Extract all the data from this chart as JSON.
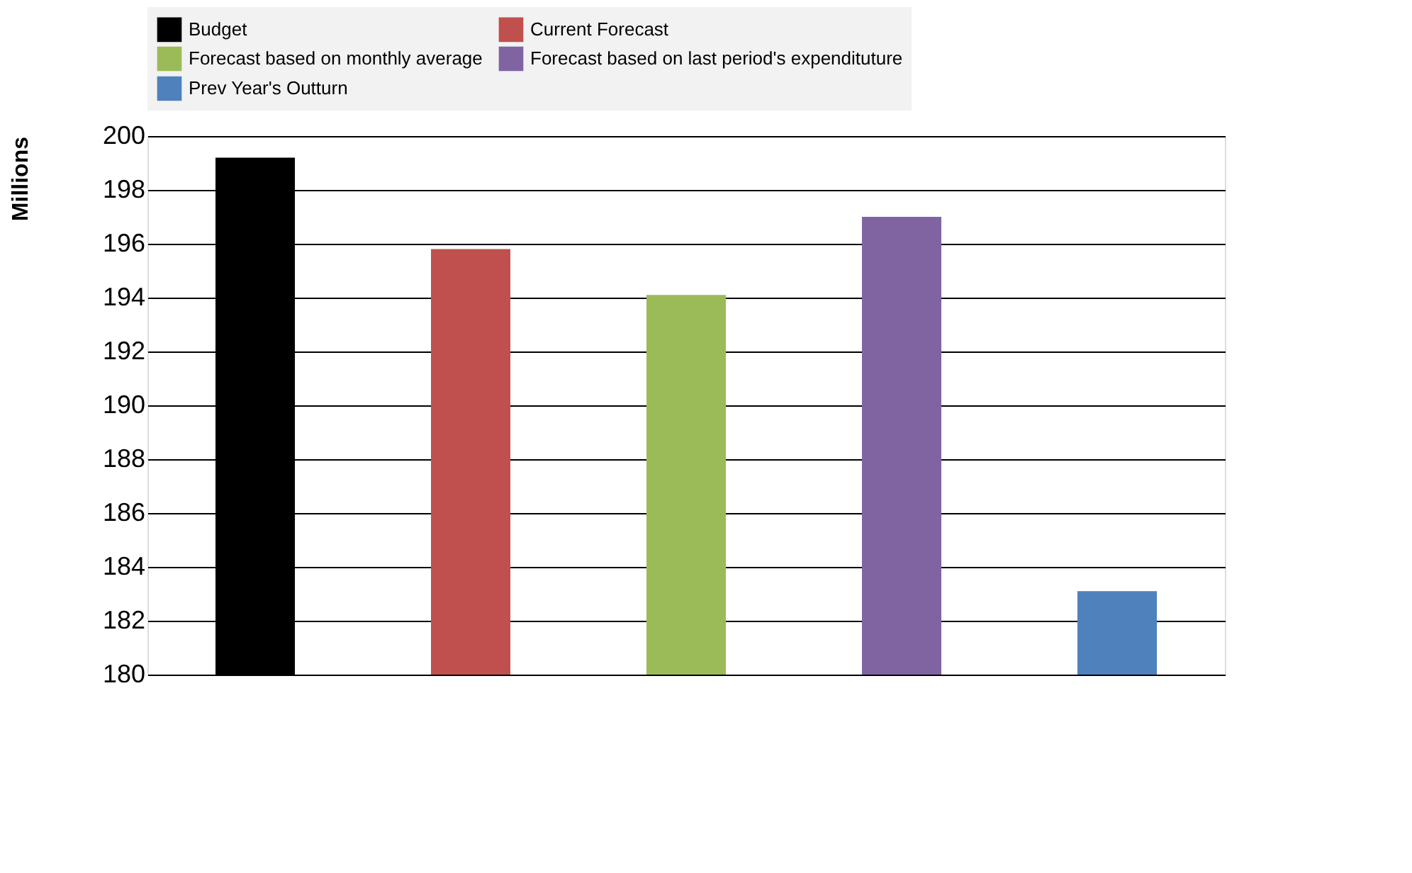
{
  "chart_data": {
    "type": "bar",
    "ylabel": "Millions",
    "categories": [
      null,
      null,
      null,
      null,
      null
    ],
    "series": [
      {
        "name": "Budget",
        "color": "#000000",
        "values": [
          199.2,
          null,
          null,
          null,
          null
        ]
      },
      {
        "name": "Current Forecast",
        "color": "#c0504d",
        "values": [
          null,
          195.8,
          null,
          null,
          null
        ]
      },
      {
        "name": "Forecast based on monthly average",
        "color": "#9bbb59",
        "values": [
          null,
          null,
          194.1,
          null,
          null
        ]
      },
      {
        "name": "Forecast based on last period's expendituture",
        "color": "#8064a2",
        "values": [
          null,
          null,
          null,
          197.0,
          null
        ]
      },
      {
        "name": "Prev Year's Outturn",
        "color": "#4f81bd",
        "values": [
          null,
          null,
          null,
          null,
          183.1
        ]
      }
    ],
    "ylim": [
      180,
      200
    ],
    "yticks": [
      180,
      182,
      184,
      186,
      188,
      190,
      192,
      194,
      196,
      198,
      200
    ],
    "grid": "y",
    "legend": "top",
    "tick_labels": "y"
  }
}
